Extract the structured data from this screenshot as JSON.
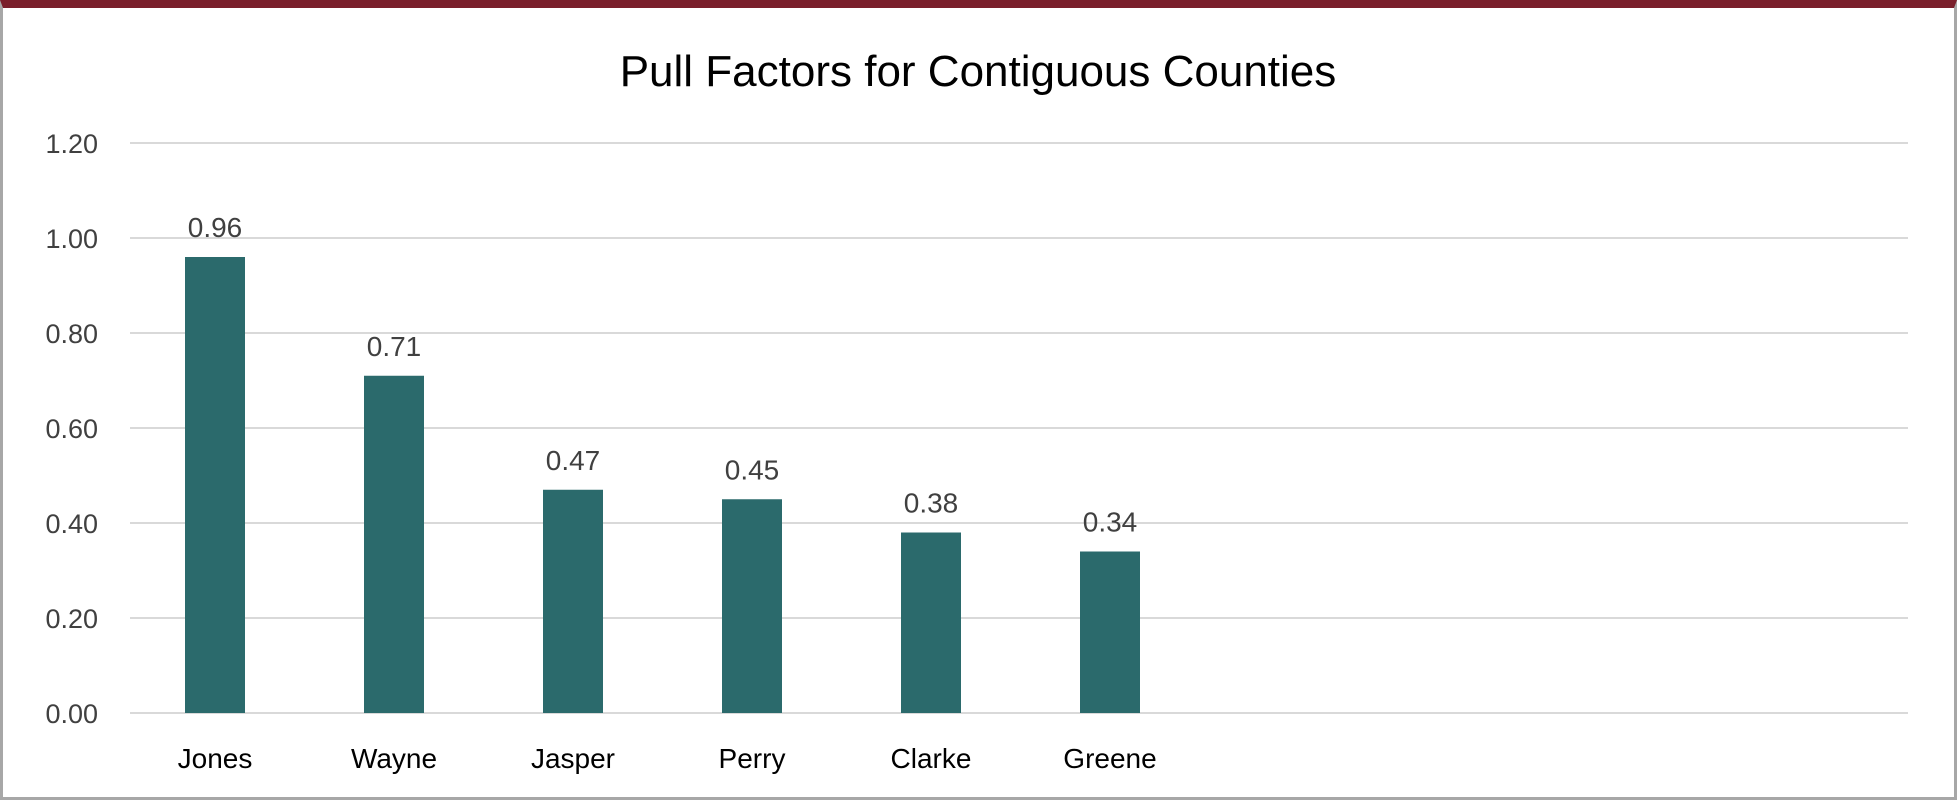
{
  "chart_data": {
    "type": "bar",
    "title": "Pull Factors for Contiguous Counties",
    "xlabel": "",
    "ylabel": "",
    "categories": [
      "Jones",
      "Wayne",
      "Jasper",
      "Perry",
      "Clarke",
      "Greene"
    ],
    "values": [
      0.96,
      0.71,
      0.47,
      0.45,
      0.38,
      0.34
    ],
    "data_labels": [
      "0.96",
      "0.71",
      "0.47",
      "0.45",
      "0.38",
      "0.34"
    ],
    "ylim": [
      0,
      1.2
    ],
    "yticks": [
      "0.00",
      "0.20",
      "0.40",
      "0.60",
      "0.80",
      "1.00",
      "1.20"
    ],
    "grid": true,
    "legend": "none",
    "bar_color": "#2b6a6c",
    "frame_top_color": "#7a1f2b"
  }
}
